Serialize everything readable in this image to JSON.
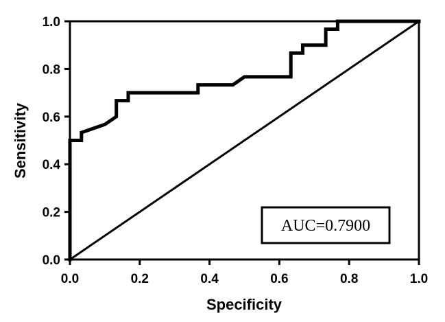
{
  "chart_data": {
    "type": "line",
    "title": "",
    "xlabel": "Specificity",
    "ylabel": "Sensitivity",
    "xlim": [
      0.0,
      1.0
    ],
    "ylim": [
      0.0,
      1.0
    ],
    "xticks": [
      "0.0",
      "0.2",
      "0.4",
      "0.6",
      "0.8",
      "1.0"
    ],
    "yticks": [
      "0.0",
      "0.2",
      "0.4",
      "0.6",
      "0.8",
      "1.0"
    ],
    "grid": false,
    "series": [
      {
        "x": [
          0.0,
          0.0,
          0.033,
          0.033,
          0.1,
          0.133,
          0.133,
          0.167,
          0.167,
          0.367,
          0.367,
          0.467,
          0.5,
          0.633,
          0.633,
          0.667,
          0.667,
          0.733,
          0.733,
          0.767,
          0.767,
          1.0
        ],
        "y": [
          0.0,
          0.5,
          0.5,
          0.533,
          0.567,
          0.6,
          0.667,
          0.667,
          0.7,
          0.7,
          0.733,
          0.733,
          0.767,
          0.767,
          0.867,
          0.867,
          0.9,
          0.9,
          0.967,
          0.967,
          1.0,
          1.0
        ]
      },
      {
        "x": [
          0.0,
          1.0
        ],
        "y": [
          0.0,
          1.0
        ]
      }
    ],
    "annotation": "AUC=0.7900"
  }
}
